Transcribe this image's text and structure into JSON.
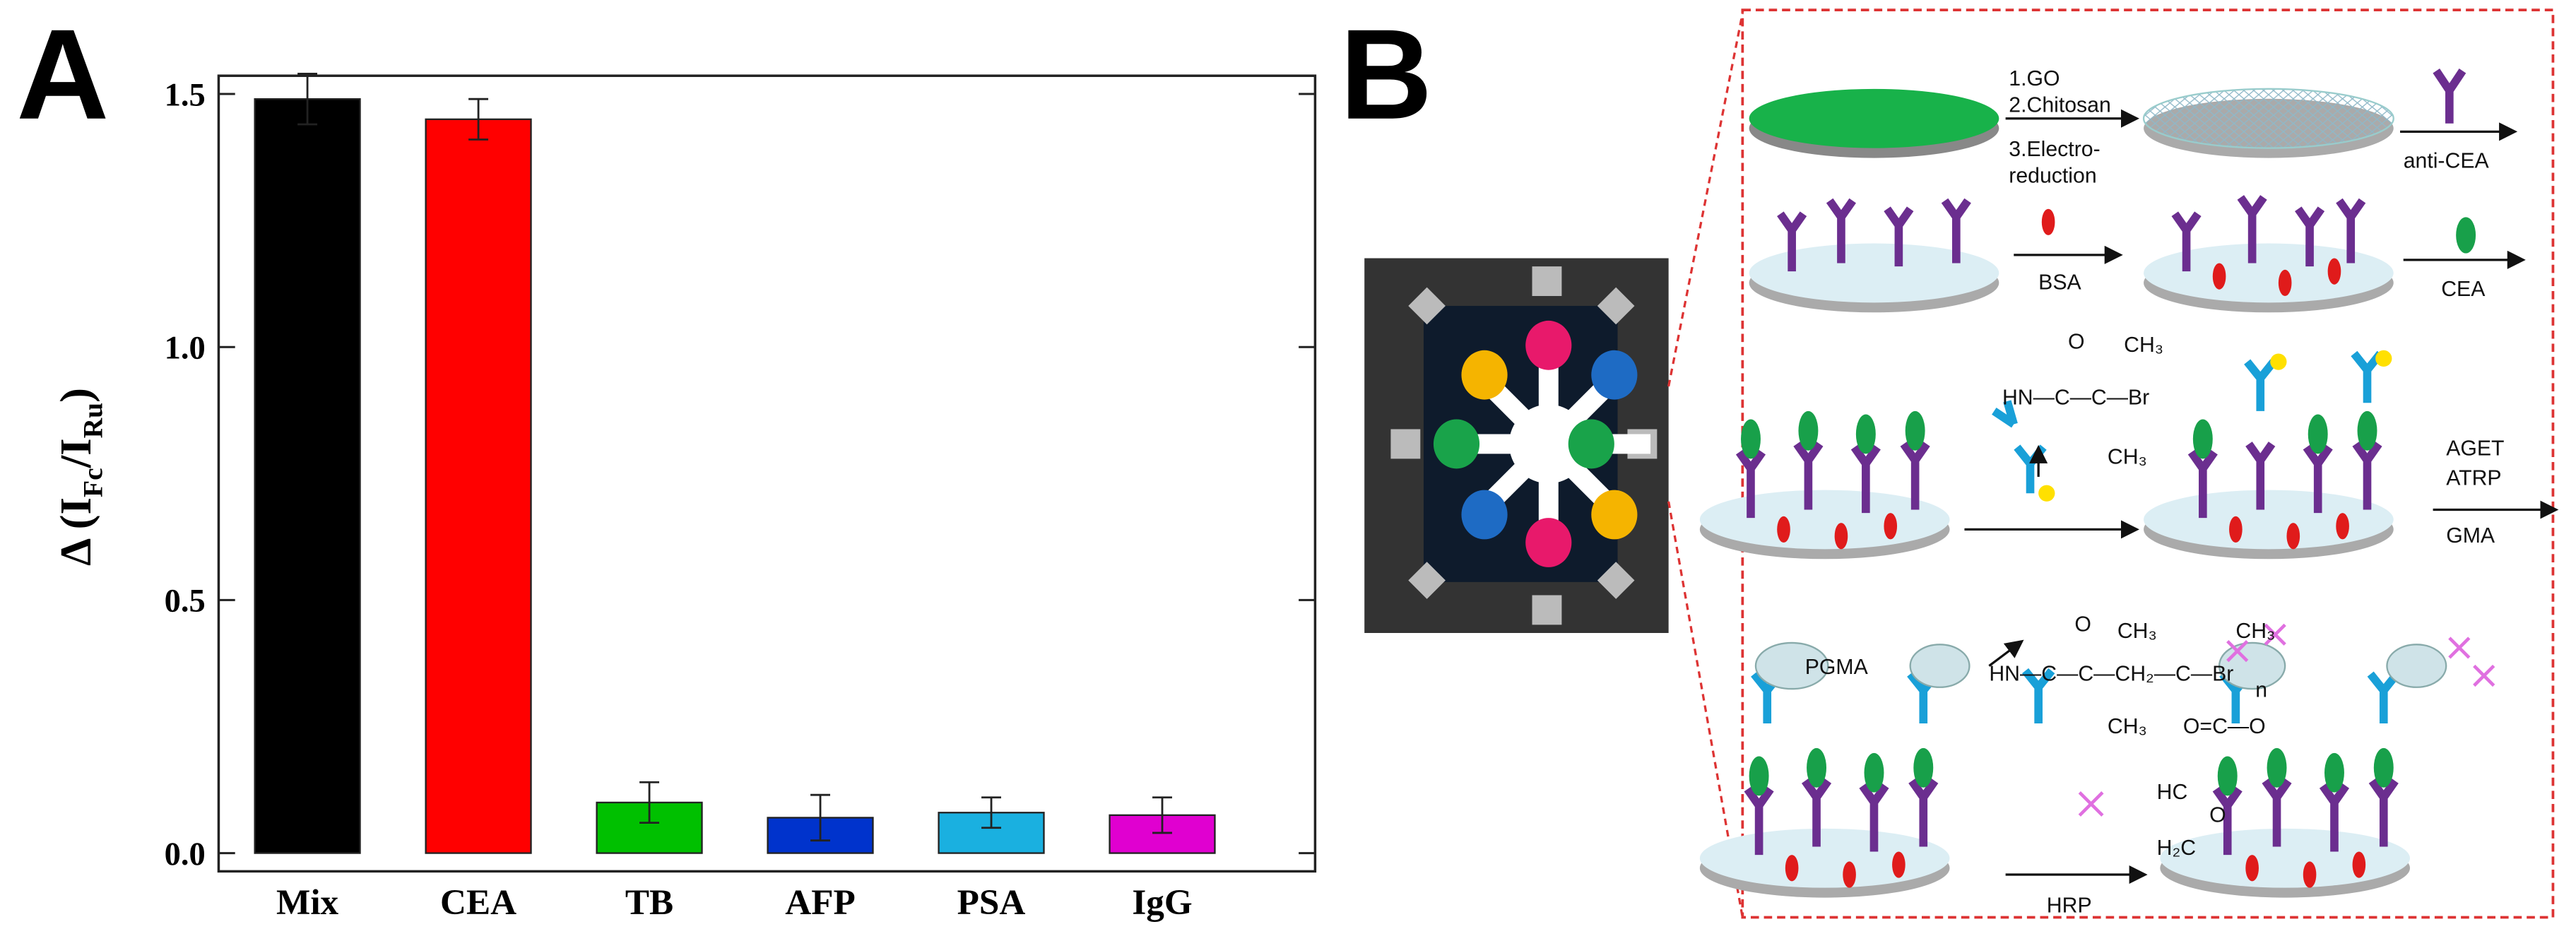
{
  "chart_data": {
    "type": "bar",
    "panel_label": "A",
    "ylabel": [
      "Δ (I",
      "Fc",
      "/I",
      "Ru",
      ")"
    ],
    "categories": [
      "Mix",
      "CEA",
      "TB",
      "AFP",
      "PSA",
      "IgG"
    ],
    "values": [
      1.49,
      1.45,
      0.1,
      0.07,
      0.08,
      0.075
    ],
    "errors": [
      0.05,
      0.04,
      0.04,
      0.045,
      0.03,
      0.035
    ],
    "colors": [
      "#000000",
      "#ff0000",
      "#00c000",
      "#0033cc",
      "#1ab0e0",
      "#e000d0"
    ],
    "ylim": [
      -0.036,
      1.536
    ],
    "yticks": [
      {
        "value": 0,
        "label": "0.0"
      },
      0.5,
      {
        "value": 1,
        "label": "1.0"
      },
      1.5
    ]
  },
  "diagram": {
    "panel_label": "B",
    "steps": [
      "1.GO",
      "2.Chitosan",
      "3.Electro-",
      "reduction"
    ],
    "reagents": [
      "anti-CEA",
      "BSA",
      "CEA",
      "AGET",
      "ATRP",
      "GMA",
      "PGMA",
      "HRP"
    ],
    "formula1": [
      "O",
      "CH₃",
      "HN—C—C—Br",
      "CH₃"
    ],
    "formula2": [
      "O",
      "CH₃",
      "CH₃",
      "HN—C—C—CH₂—C—Br",
      "n",
      "CH₃",
      "O=C—O",
      "HC",
      "O",
      "H₂C"
    ]
  }
}
